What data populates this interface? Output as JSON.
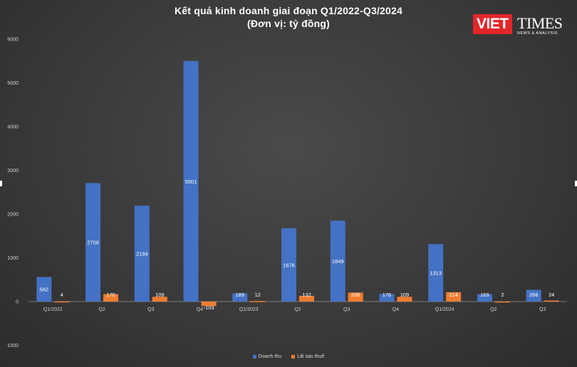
{
  "chart_data": {
    "type": "bar",
    "title": "Kết quả kinh doanh giai đoạn Q1/2022-Q3/2024",
    "subtitle": "(Đơn vị: tỷ đồng)",
    "categories": [
      "Q1/2022",
      "Q2",
      "Q3",
      "Q4",
      "Q1/2023",
      "Q2",
      "Q3",
      "Q4",
      "Q1/2024",
      "Q2",
      "Q3"
    ],
    "series": [
      {
        "name": "Doanh thu",
        "color": "#4472c4",
        "values": [
          562,
          2709,
          2194,
          5501,
          189,
          1676,
          1849,
          176,
          1313,
          169,
          268
        ]
      },
      {
        "name": "Lãi sau thuế",
        "color": "#ed7d31",
        "values": [
          4,
          170,
          109,
          -103,
          12,
          132,
          206,
          109,
          214,
          2,
          24
        ]
      }
    ],
    "ylim": [
      -1000,
      6000
    ],
    "yticks": [
      6000,
      5000,
      4000,
      3000,
      2000,
      1000,
      0,
      -1000
    ],
    "grid": false,
    "legend_position": "bottom"
  },
  "logo": {
    "viet": "VIET",
    "times": "TIMES",
    "tagline": "NEWS & ANALYSIS"
  }
}
